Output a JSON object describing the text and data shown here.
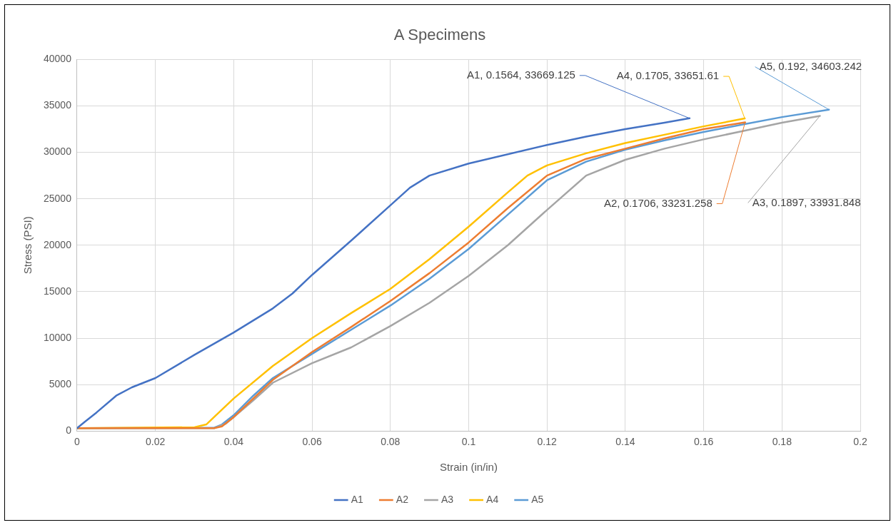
{
  "chart_data": {
    "type": "line",
    "title": "A Specimens",
    "xlabel": "Strain (in/in)",
    "ylabel": "Stress (PSI)",
    "xlim": [
      0,
      0.2
    ],
    "xticks": [
      0,
      0.02,
      0.04,
      0.06,
      0.08,
      0.1,
      0.12,
      0.14,
      0.16,
      0.18,
      0.2
    ],
    "ylim": [
      0,
      40000
    ],
    "yticks": [
      0,
      5000,
      10000,
      15000,
      20000,
      25000,
      30000,
      35000,
      40000
    ],
    "grid": true,
    "legend": "bottom",
    "marker": "none",
    "line_style": "solid",
    "series": [
      {
        "name": "A1",
        "color": "#4472c4",
        "x": [
          0,
          0.002,
          0.005,
          0.01,
          0.014,
          0.02,
          0.03,
          0.04,
          0.05,
          0.055,
          0.06,
          0.07,
          0.08,
          0.085,
          0.09,
          0.1,
          0.12,
          0.13,
          0.14,
          0.15,
          0.1564
        ],
        "values": [
          300,
          1000,
          2000,
          3800,
          4700,
          5700,
          8200,
          10600,
          13200,
          14800,
          16800,
          20500,
          24300,
          26200,
          27500,
          28800,
          30800,
          31700,
          32500,
          33200,
          33669.125
        ]
      },
      {
        "name": "A2",
        "color": "#ed7d31",
        "x": [
          0,
          0.035,
          0.037,
          0.04,
          0.045,
          0.05,
          0.055,
          0.06,
          0.07,
          0.08,
          0.09,
          0.1,
          0.11,
          0.12,
          0.13,
          0.14,
          0.15,
          0.16,
          0.1706
        ],
        "values": [
          300,
          300,
          500,
          1500,
          3500,
          5500,
          7000,
          8500,
          11200,
          14000,
          17000,
          20300,
          24000,
          27500,
          29300,
          30400,
          31500,
          32500,
          33231.258
        ]
      },
      {
        "name": "A3",
        "color": "#a5a5a5",
        "x": [
          0,
          0.035,
          0.038,
          0.04,
          0.045,
          0.05,
          0.06,
          0.07,
          0.08,
          0.09,
          0.1,
          0.11,
          0.12,
          0.13,
          0.14,
          0.15,
          0.16,
          0.17,
          0.18,
          0.1897
        ],
        "values": [
          300,
          300,
          800,
          1500,
          3300,
          5200,
          7300,
          9000,
          11300,
          13800,
          16700,
          20000,
          23800,
          27500,
          29200,
          30400,
          31400,
          32300,
          33200,
          33931.848
        ]
      },
      {
        "name": "A4",
        "color": "#ffc000",
        "x": [
          0,
          0.03,
          0.033,
          0.035,
          0.04,
          0.05,
          0.06,
          0.07,
          0.08,
          0.09,
          0.1,
          0.11,
          0.115,
          0.12,
          0.13,
          0.14,
          0.15,
          0.16,
          0.1705
        ],
        "values": [
          300,
          400,
          700,
          1500,
          3500,
          7000,
          10000,
          12700,
          15300,
          18500,
          22000,
          25700,
          27500,
          28600,
          29900,
          31000,
          31900,
          32800,
          33651.61
        ]
      },
      {
        "name": "A5",
        "color": "#5b9bd5",
        "x": [
          0,
          0.035,
          0.037,
          0.04,
          0.045,
          0.05,
          0.06,
          0.07,
          0.08,
          0.09,
          0.1,
          0.11,
          0.12,
          0.13,
          0.14,
          0.15,
          0.16,
          0.17,
          0.18,
          0.192
        ],
        "values": [
          300,
          350,
          700,
          1700,
          3800,
          5700,
          8300,
          10900,
          13500,
          16400,
          19600,
          23300,
          27000,
          29000,
          30300,
          31300,
          32200,
          33000,
          33800,
          34603.242
        ]
      }
    ],
    "annotations": [
      {
        "text": "A1, 0.1564, 33669.125",
        "x": 0.1564,
        "y": 33669.125
      },
      {
        "text": "A4, 0.1705, 33651.61",
        "x": 0.1705,
        "y": 33651.61
      },
      {
        "text": "A5, 0.192, 34603.242",
        "x": 0.192,
        "y": 34603.242
      },
      {
        "text": "A2, 0.1706, 33231.258",
        "x": 0.1706,
        "y": 33231.258
      },
      {
        "text": "A3, 0.1897, 33931.848",
        "x": 0.1897,
        "y": 33931.848
      }
    ]
  }
}
